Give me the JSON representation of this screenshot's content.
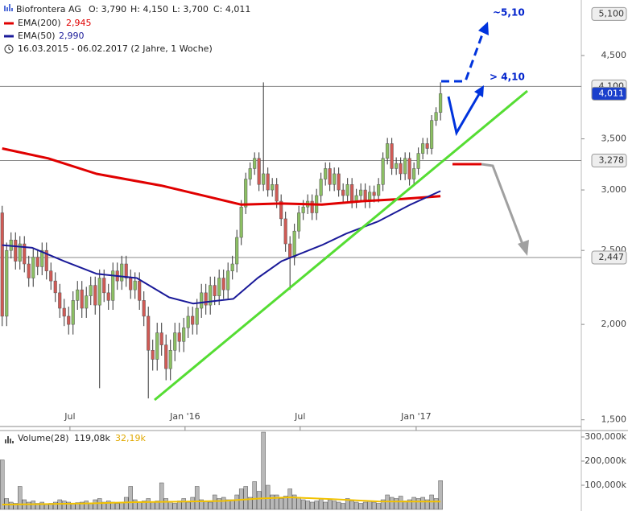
{
  "chart_data": {
    "type": "candlestick",
    "title": "Biofrontera AG",
    "ohlc_labels": [
      "O: 3,790",
      "H: 4,150",
      "L: 3,700",
      "C: 4,011"
    ],
    "subtitle": "16.03.2015 - 06.02.2017 (2 Jahre, 1 Woche)",
    "log_y": true,
    "xlim": [
      -0.5,
      130.8
    ],
    "xticks": [
      {
        "value": 15.3,
        "label": "Jul"
      },
      {
        "value": 41.3,
        "label": "Jan '16"
      },
      {
        "value": 67.3,
        "label": "Jul"
      },
      {
        "value": 93.5,
        "label": "Jan '17"
      }
    ],
    "ylim": [
      1.47,
      5.32
    ],
    "yticks": [
      {
        "value": 1.5,
        "label": "1,500"
      },
      {
        "value": 2.0,
        "label": "2,000"
      },
      {
        "value": 2.5,
        "label": "2,500"
      },
      {
        "value": 3.0,
        "label": "3,000"
      },
      {
        "value": 3.5,
        "label": "3,500"
      },
      {
        "value": 4.5,
        "label": "4,500"
      }
    ],
    "up_color": "#8cc063",
    "down_color": "#d05a55",
    "ohlc": [
      [
        2.8,
        2.86,
        1.99,
        2.05
      ],
      [
        2.05,
        2.56,
        1.99,
        2.5
      ],
      [
        2.5,
        2.64,
        2.44,
        2.58
      ],
      [
        2.58,
        2.64,
        2.36,
        2.42
      ],
      [
        2.42,
        2.61,
        2.36,
        2.55
      ],
      [
        2.55,
        2.61,
        2.34,
        2.4
      ],
      [
        2.4,
        2.46,
        2.24,
        2.3
      ],
      [
        2.3,
        2.51,
        2.24,
        2.45
      ],
      [
        2.45,
        2.51,
        2.32,
        2.38
      ],
      [
        2.38,
        2.56,
        2.32,
        2.5
      ],
      [
        2.5,
        2.56,
        2.29,
        2.35
      ],
      [
        2.35,
        2.41,
        2.22,
        2.28
      ],
      [
        2.28,
        2.34,
        2.14,
        2.2
      ],
      [
        2.2,
        2.26,
        2.04,
        2.1
      ],
      [
        2.1,
        2.16,
        1.99,
        2.05
      ],
      [
        2.05,
        2.11,
        1.94,
        2.0
      ],
      [
        2.0,
        2.21,
        1.94,
        2.15
      ],
      [
        2.15,
        2.28,
        2.09,
        2.22
      ],
      [
        2.22,
        2.28,
        2.04,
        2.1
      ],
      [
        2.1,
        2.24,
        2.04,
        2.18
      ],
      [
        2.18,
        2.31,
        2.12,
        2.25
      ],
      [
        2.25,
        2.31,
        2.06,
        2.12
      ],
      [
        2.12,
        2.36,
        1.65,
        2.3
      ],
      [
        2.3,
        2.36,
        2.14,
        2.2
      ],
      [
        2.2,
        2.26,
        2.09,
        2.15
      ],
      [
        2.15,
        2.41,
        2.09,
        2.35
      ],
      [
        2.35,
        2.41,
        2.22,
        2.28
      ],
      [
        2.28,
        2.46,
        2.22,
        2.4
      ],
      [
        2.4,
        2.46,
        2.24,
        2.3
      ],
      [
        2.3,
        2.36,
        2.16,
        2.22
      ],
      [
        2.22,
        2.34,
        2.16,
        2.28
      ],
      [
        2.28,
        2.34,
        2.09,
        2.15
      ],
      [
        2.15,
        2.21,
        1.99,
        2.05
      ],
      [
        2.05,
        2.11,
        1.6,
        1.85
      ],
      [
        1.85,
        1.91,
        1.74,
        1.8
      ],
      [
        1.8,
        2.01,
        1.74,
        1.95
      ],
      [
        1.95,
        2.01,
        1.82,
        1.88
      ],
      [
        1.88,
        1.94,
        1.69,
        1.75
      ],
      [
        1.75,
        1.91,
        1.69,
        1.85
      ],
      [
        1.85,
        2.01,
        1.79,
        1.95
      ],
      [
        1.95,
        2.01,
        1.84,
        1.9
      ],
      [
        1.9,
        2.04,
        1.84,
        1.98
      ],
      [
        1.98,
        2.11,
        1.92,
        2.05
      ],
      [
        2.05,
        2.11,
        1.94,
        2.0
      ],
      [
        2.0,
        2.16,
        1.94,
        2.1
      ],
      [
        2.1,
        2.26,
        2.04,
        2.2
      ],
      [
        2.2,
        2.26,
        2.06,
        2.12
      ],
      [
        2.12,
        2.31,
        2.06,
        2.25
      ],
      [
        2.25,
        2.31,
        2.12,
        2.18
      ],
      [
        2.18,
        2.36,
        2.12,
        2.3
      ],
      [
        2.3,
        2.36,
        2.16,
        2.22
      ],
      [
        2.22,
        2.41,
        2.16,
        2.35
      ],
      [
        2.35,
        2.46,
        2.29,
        2.4
      ],
      [
        2.4,
        2.66,
        2.34,
        2.6
      ],
      [
        2.6,
        2.91,
        2.54,
        2.85
      ],
      [
        2.85,
        3.16,
        2.79,
        3.1
      ],
      [
        3.1,
        3.26,
        3.04,
        3.2
      ],
      [
        3.2,
        3.36,
        3.14,
        3.3
      ],
      [
        3.3,
        3.36,
        2.99,
        3.05
      ],
      [
        3.05,
        4.15,
        2.99,
        3.15
      ],
      [
        3.15,
        3.21,
        2.94,
        3.0
      ],
      [
        3.0,
        3.11,
        2.94,
        3.05
      ],
      [
        3.05,
        3.11,
        2.84,
        2.9
      ],
      [
        2.9,
        2.96,
        2.69,
        2.75
      ],
      [
        2.75,
        2.81,
        2.49,
        2.55
      ],
      [
        2.55,
        2.61,
        2.22,
        2.45
      ],
      [
        2.45,
        2.71,
        2.39,
        2.65
      ],
      [
        2.65,
        2.86,
        2.59,
        2.8
      ],
      [
        2.8,
        2.91,
        2.74,
        2.85
      ],
      [
        2.85,
        2.96,
        2.79,
        2.9
      ],
      [
        2.9,
        2.96,
        2.74,
        2.8
      ],
      [
        2.8,
        3.01,
        2.74,
        2.95
      ],
      [
        2.95,
        3.16,
        2.89,
        3.1
      ],
      [
        3.1,
        3.26,
        3.04,
        3.2
      ],
      [
        3.2,
        3.26,
        2.99,
        3.05
      ],
      [
        3.05,
        3.21,
        2.99,
        3.15
      ],
      [
        3.15,
        3.21,
        2.94,
        3.0
      ],
      [
        3.0,
        3.06,
        2.89,
        2.95
      ],
      [
        2.95,
        3.11,
        2.89,
        3.05
      ],
      [
        3.05,
        3.11,
        2.84,
        2.9
      ],
      [
        2.9,
        3.01,
        2.84,
        2.95
      ],
      [
        2.95,
        3.06,
        2.89,
        3.0
      ],
      [
        3.0,
        3.06,
        2.84,
        2.9
      ],
      [
        2.9,
        3.04,
        2.84,
        2.98
      ],
      [
        2.98,
        3.04,
        2.89,
        2.95
      ],
      [
        2.95,
        3.11,
        2.89,
        3.05
      ],
      [
        3.05,
        3.36,
        2.99,
        3.3
      ],
      [
        3.3,
        3.51,
        3.24,
        3.45
      ],
      [
        3.45,
        3.51,
        3.14,
        3.2
      ],
      [
        3.2,
        3.31,
        3.14,
        3.25
      ],
      [
        3.25,
        3.31,
        3.09,
        3.15
      ],
      [
        3.15,
        3.36,
        3.09,
        3.3
      ],
      [
        3.3,
        3.36,
        3.04,
        3.1
      ],
      [
        3.1,
        3.26,
        3.04,
        3.2
      ],
      [
        3.2,
        3.41,
        3.14,
        3.35
      ],
      [
        3.35,
        3.51,
        3.29,
        3.45
      ],
      [
        3.45,
        3.51,
        3.34,
        3.4
      ],
      [
        3.4,
        3.76,
        3.34,
        3.7
      ],
      [
        3.7,
        3.85,
        3.64,
        3.79
      ],
      [
        3.79,
        4.15,
        3.7,
        4.011
      ]
    ],
    "lines": [
      {
        "name": "EMA(200)",
        "value_label": "2,945",
        "color": "#e00000",
        "width": 3,
        "x": [
          0,
          10.4,
          21.3,
          35.9,
          48.6,
          54,
          63,
          72.2,
          81.3,
          90.4,
          99
        ],
        "values": [
          3.4,
          3.3,
          3.15,
          3.04,
          2.92,
          2.87,
          2.88,
          2.87,
          2.9,
          2.92,
          2.945
        ]
      },
      {
        "name": "EMA(50)",
        "value_label": "2,990",
        "color": "#1a1a99",
        "width": 2,
        "x": [
          0,
          6.8,
          14,
          21.3,
          30.4,
          37.7,
          43.1,
          52.2,
          57.7,
          63.1,
          72.2,
          77.7,
          85,
          92.2,
          99
        ],
        "values": [
          2.54,
          2.52,
          2.42,
          2.33,
          2.3,
          2.17,
          2.13,
          2.16,
          2.3,
          2.42,
          2.54,
          2.63,
          2.73,
          2.87,
          2.99
        ]
      }
    ],
    "price_levels": [
      {
        "value": 5.1,
        "label": "5,100",
        "line": false
      },
      {
        "value": 4.1,
        "label": "4,100",
        "line": true
      },
      {
        "value": 3.278,
        "label": "3,278",
        "line": true
      },
      {
        "value": 2.447,
        "label": "2,447",
        "line": true
      }
    ],
    "last_price": {
      "value": 4.011,
      "label": "4,011",
      "color": "#1a3fcc"
    },
    "annotations": [
      "~5,10",
      "> 4,10"
    ],
    "volume": {
      "name": "Volume(28)",
      "value_label": "119,08k",
      "ma_label": "32,19k",
      "color": "#b8b8b8",
      "ma_color": "#f2c200",
      "ylim": [
        0,
        320
      ],
      "yticks": [
        {
          "value": 100,
          "label": "100,000k"
        },
        {
          "value": 200,
          "label": "200,000k"
        },
        {
          "value": 300,
          "label": "300,000k"
        }
      ],
      "values": [
        205,
        45,
        30,
        25,
        95,
        40,
        30,
        35,
        25,
        30,
        20,
        25,
        30,
        40,
        35,
        30,
        25,
        28,
        30,
        35,
        25,
        40,
        45,
        30,
        35,
        30,
        25,
        28,
        50,
        95,
        40,
        30,
        35,
        45,
        30,
        35,
        110,
        45,
        30,
        25,
        35,
        45,
        30,
        50,
        95,
        40,
        35,
        30,
        60,
        45,
        50,
        40,
        40,
        60,
        85,
        95,
        50,
        115,
        75,
        320,
        100,
        60,
        60,
        45,
        55,
        85,
        60,
        50,
        40,
        35,
        30,
        35,
        45,
        30,
        40,
        35,
        30,
        25,
        45,
        35,
        30,
        25,
        30,
        35,
        30,
        25,
        40,
        60,
        50,
        45,
        55,
        35,
        40,
        50,
        45,
        50,
        40,
        60,
        45,
        119.08
      ],
      "ma_x": [
        0,
        10,
        20,
        30,
        40,
        50,
        58,
        65,
        75,
        85,
        99
      ],
      "ma_values": [
        20,
        22,
        25,
        30,
        32,
        35,
        45,
        50,
        42,
        33,
        32.19
      ]
    }
  }
}
